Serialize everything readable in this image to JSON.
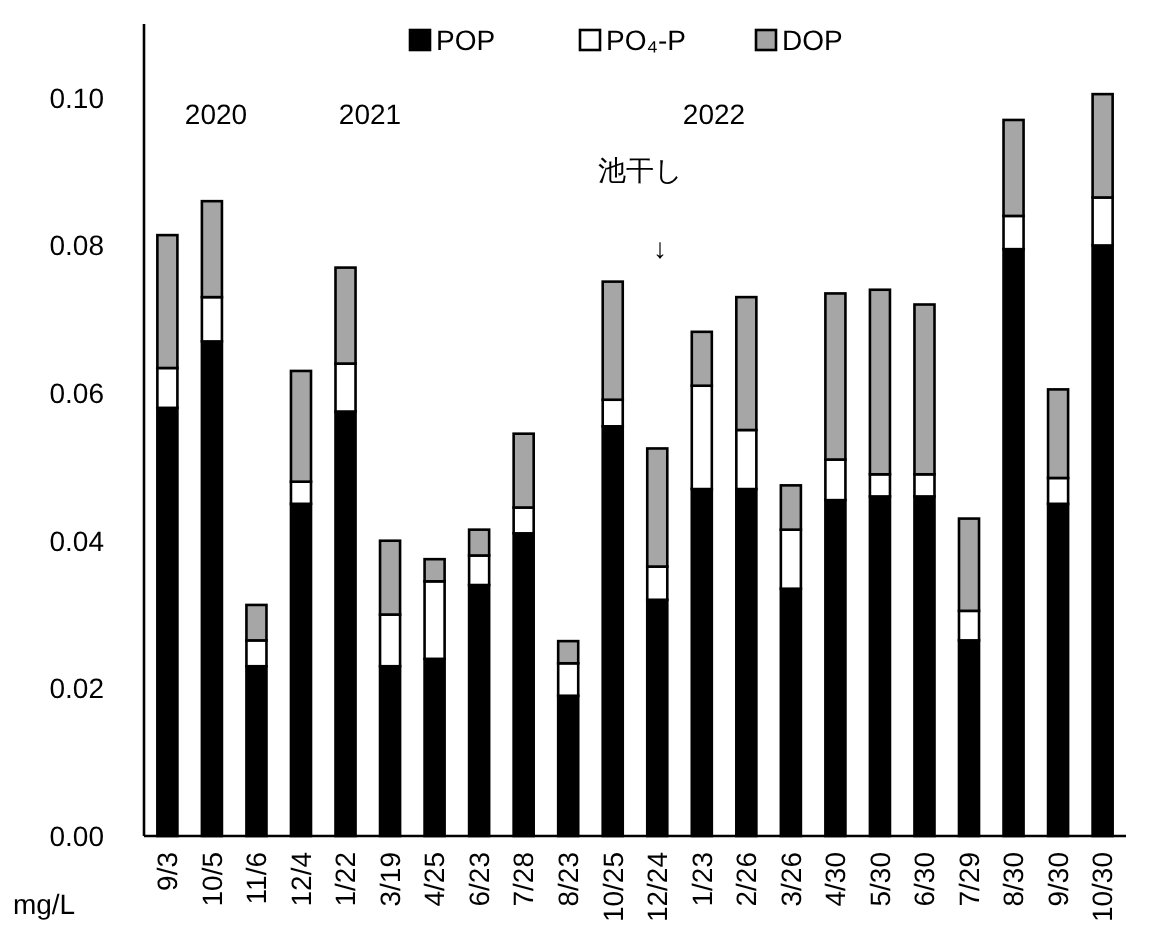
{
  "chart_data": {
    "type": "bar",
    "stacked": true,
    "ylabel": "mg/L",
    "legend": "top",
    "grid": false,
    "categories": [
      "9/3",
      "10/5",
      "11/6",
      "12/4",
      "1/22",
      "3/19",
      "4/25",
      "6/23",
      "7/28",
      "8/23",
      "10/25",
      "12/24",
      "1/23",
      "2/26",
      "3/26",
      "4/30",
      "5/30",
      "6/30",
      "7/29",
      "8/30",
      "9/30",
      "10/30"
    ],
    "series": [
      {
        "name": "POP",
        "color": "#000000",
        "values": [
          0.058,
          0.067,
          0.023,
          0.045,
          0.0575,
          0.023,
          0.024,
          0.034,
          0.041,
          0.019,
          0.0555,
          0.032,
          0.047,
          0.047,
          0.0335,
          0.0455,
          0.046,
          0.046,
          0.0265,
          0.0795,
          0.045,
          0.08
        ]
      },
      {
        "name": "PO₄-P",
        "color": "#ffffff",
        "values": [
          0.0054,
          0.006,
          0.0035,
          0.003,
          0.0065,
          0.007,
          0.0105,
          0.004,
          0.0035,
          0.0044,
          0.0036,
          0.0045,
          0.014,
          0.008,
          0.008,
          0.0055,
          0.003,
          0.003,
          0.004,
          0.0045,
          0.0035,
          0.0065
        ]
      },
      {
        "name": "DOP",
        "color": "#a6a6a6",
        "values": [
          0.018,
          0.013,
          0.0048,
          0.015,
          0.013,
          0.01,
          0.003,
          0.0035,
          0.01,
          0.003,
          0.016,
          0.016,
          0.0073,
          0.018,
          0.006,
          0.0225,
          0.025,
          0.023,
          0.0125,
          0.013,
          0.012,
          0.014
        ]
      }
    ],
    "ylim": [
      0,
      0.11
    ],
    "yticks": [
      {
        "value": 0,
        "label": "0.00"
      },
      {
        "value": 0.02,
        "label": "0.02"
      },
      {
        "value": 0.04,
        "label": "0.04"
      },
      {
        "value": 0.06,
        "label": "0.06"
      },
      {
        "value": 0.08,
        "label": "0.08"
      },
      {
        "value": 0.1,
        "label": "0.10"
      }
    ],
    "annotations": [
      "2020",
      "2021",
      "2022",
      "池干し",
      "↓"
    ]
  }
}
